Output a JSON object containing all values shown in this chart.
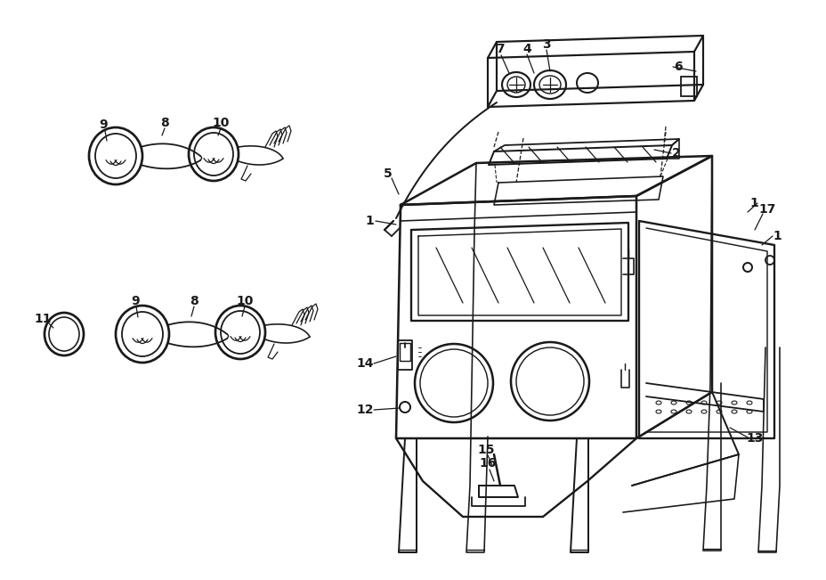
{
  "bg_color": "#ffffff",
  "line_color": "#1a1a1a",
  "lw": 1.3
}
